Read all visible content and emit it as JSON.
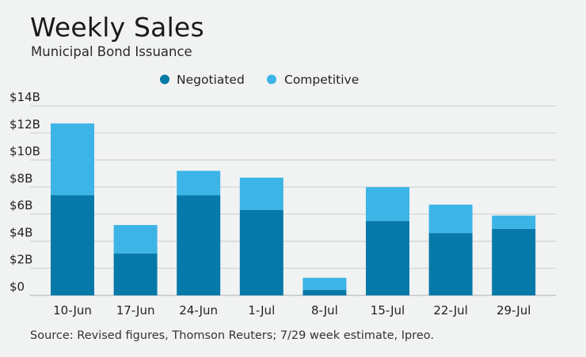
{
  "chart_data": {
    "type": "bar",
    "stacked": true,
    "title": "Weekly Sales",
    "subtitle": "Municipal Bond Issuance",
    "xlabel": "",
    "ylabel": "",
    "categories": [
      "10-Jun",
      "17-Jun",
      "24-Jun",
      "1-Jul",
      "8-Jul",
      "15-Jul",
      "22-Jul",
      "29-Jul"
    ],
    "series": [
      {
        "name": "Negotiated",
        "color": "#0779a8",
        "values": [
          7.4,
          3.1,
          7.4,
          6.3,
          0.4,
          5.5,
          4.6,
          4.9
        ]
      },
      {
        "name": "Competitive",
        "color": "#3db4e6",
        "values": [
          5.3,
          2.1,
          1.8,
          2.4,
          0.9,
          2.5,
          2.1,
          1.0
        ]
      }
    ],
    "ylim": [
      0,
      14
    ],
    "yticks": [
      0,
      2,
      4,
      6,
      8,
      10,
      12,
      14
    ],
    "ytick_labels": [
      "$0",
      "$2B",
      "$4B",
      "$6B",
      "$8B",
      "$10B",
      "$12B",
      "$14B"
    ],
    "grid": true,
    "legend_position": "top-center",
    "source": "Source: Revised figures, Thomson Reuters; 7/29 week estimate, Ipreo."
  }
}
